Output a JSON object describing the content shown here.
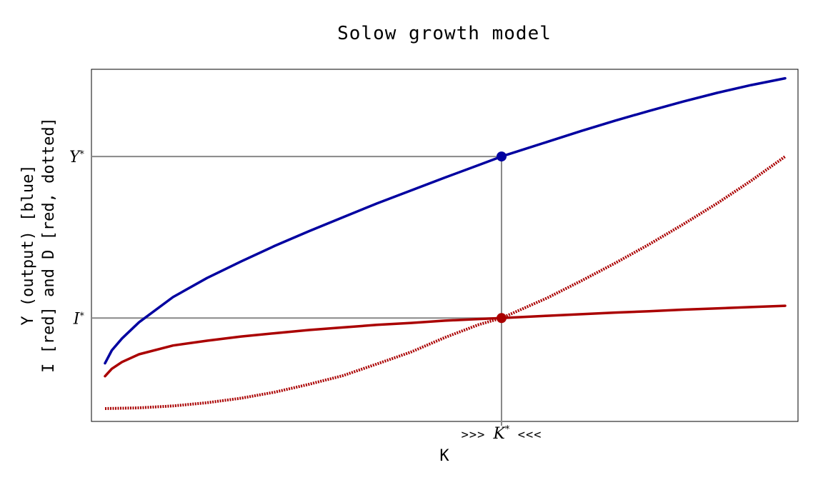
{
  "chart_data": {
    "type": "line",
    "title": "Solow growth model",
    "xlabel": "K",
    "ylabel_line1": "Y (output) [blue]",
    "ylabel_line2": "I [red] and D [red, dotted]",
    "xlim": [
      0,
      1
    ],
    "ylim": [
      0,
      1.05
    ],
    "grid": false,
    "x_ticks": [
      {
        "x": 0.583,
        "prefix": ">>> ",
        "label": "K",
        "sup": "*",
        "suffix": " <<<"
      }
    ],
    "y_ticks": [
      {
        "y": 0.3,
        "label": "I",
        "sup": "*"
      },
      {
        "y": 0.8,
        "label": "Y",
        "sup": "*"
      }
    ],
    "series": [
      {
        "id": "output",
        "color": "#0000a0",
        "style": "solid",
        "points": [
          [
            0,
            0.16
          ],
          [
            0.01,
            0.2
          ],
          [
            0.025,
            0.237
          ],
          [
            0.05,
            0.287
          ],
          [
            0.1,
            0.365
          ],
          [
            0.15,
            0.424
          ],
          [
            0.2,
            0.475
          ],
          [
            0.25,
            0.524
          ],
          [
            0.3,
            0.569
          ],
          [
            0.35,
            0.612
          ],
          [
            0.4,
            0.655
          ],
          [
            0.45,
            0.695
          ],
          [
            0.5,
            0.735
          ],
          [
            0.55,
            0.774
          ],
          [
            0.583,
            0.8
          ],
          [
            0.65,
            0.845
          ],
          [
            0.7,
            0.879
          ],
          [
            0.75,
            0.911
          ],
          [
            0.8,
            0.941
          ],
          [
            0.85,
            0.97
          ],
          [
            0.9,
            0.997
          ],
          [
            0.95,
            1.021
          ],
          [
            1.0,
            1.042
          ]
        ]
      },
      {
        "id": "investment",
        "color": "#aa0000",
        "style": "solid",
        "points": [
          [
            0,
            0.12
          ],
          [
            0.01,
            0.143
          ],
          [
            0.025,
            0.164
          ],
          [
            0.05,
            0.188
          ],
          [
            0.1,
            0.215
          ],
          [
            0.15,
            0.23
          ],
          [
            0.2,
            0.243
          ],
          [
            0.25,
            0.253
          ],
          [
            0.3,
            0.263
          ],
          [
            0.35,
            0.271
          ],
          [
            0.4,
            0.279
          ],
          [
            0.45,
            0.285
          ],
          [
            0.5,
            0.292
          ],
          [
            0.55,
            0.297
          ],
          [
            0.583,
            0.3
          ],
          [
            0.65,
            0.307
          ],
          [
            0.7,
            0.312
          ],
          [
            0.75,
            0.317
          ],
          [
            0.8,
            0.321
          ],
          [
            0.85,
            0.326
          ],
          [
            0.9,
            0.33
          ],
          [
            0.95,
            0.334
          ],
          [
            1.0,
            0.338
          ]
        ]
      },
      {
        "id": "depreciation",
        "color": "#aa0000",
        "style": "dotted",
        "points": [
          [
            0,
            0.02
          ],
          [
            0.05,
            0.022
          ],
          [
            0.1,
            0.028
          ],
          [
            0.15,
            0.038
          ],
          [
            0.2,
            0.052
          ],
          [
            0.25,
            0.071
          ],
          [
            0.3,
            0.095
          ],
          [
            0.35,
            0.122
          ],
          [
            0.4,
            0.158
          ],
          [
            0.45,
            0.195
          ],
          [
            0.5,
            0.24
          ],
          [
            0.55,
            0.28
          ],
          [
            0.583,
            0.3
          ],
          [
            0.65,
            0.362
          ],
          [
            0.7,
            0.415
          ],
          [
            0.75,
            0.47
          ],
          [
            0.8,
            0.528
          ],
          [
            0.85,
            0.59
          ],
          [
            0.9,
            0.655
          ],
          [
            0.95,
            0.725
          ],
          [
            1.0,
            0.8
          ]
        ]
      }
    ],
    "reference_lines": [
      {
        "orientation": "horizontal",
        "y": 0.8,
        "x_end": 0.583,
        "color": "#888888"
      },
      {
        "orientation": "horizontal",
        "y": 0.3,
        "x_end": 0.583,
        "color": "#888888"
      },
      {
        "orientation": "vertical",
        "x": 0.583,
        "y_end": 0.8,
        "color": "#888888"
      }
    ],
    "markers": [
      {
        "id": "output-steady-state",
        "x": 0.583,
        "y": 0.8,
        "color": "#0000a0"
      },
      {
        "id": "investment-steady-state",
        "x": 0.583,
        "y": 0.3,
        "color": "#aa0000"
      }
    ]
  }
}
